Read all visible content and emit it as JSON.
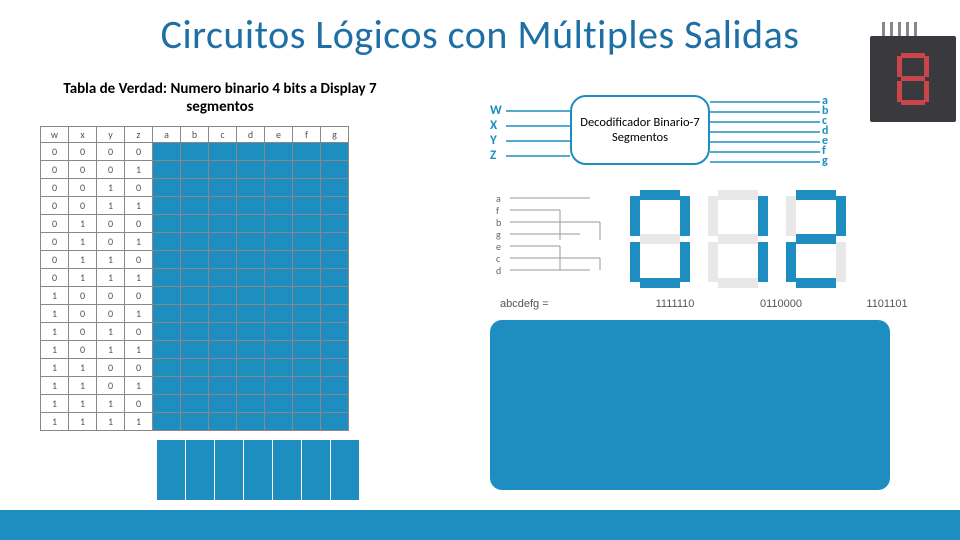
{
  "colors": {
    "title": "#1d6fa5",
    "bar": "#1d8ebf",
    "grid": "#888888",
    "segOff": "#e8e8e8",
    "segOn": "#1d8ebf",
    "photoBg": "#3a393e",
    "photoSeg": "#c8454a"
  },
  "title": "Circuitos Lógicos con Múltiples Salidas",
  "subtitle": "Tabla de Verdad: Numero binario 4 bits a Display 7 segmentos",
  "truth_table": {
    "headers": [
      "w",
      "x",
      "y",
      "z",
      "a",
      "b",
      "c",
      "d",
      "e",
      "f",
      "g"
    ],
    "input_cols": 4,
    "rows": [
      [
        0,
        0,
        0,
        0
      ],
      [
        0,
        0,
        0,
        1
      ],
      [
        0,
        0,
        1,
        0
      ],
      [
        0,
        0,
        1,
        1
      ],
      [
        0,
        1,
        0,
        0
      ],
      [
        0,
        1,
        0,
        1
      ],
      [
        0,
        1,
        1,
        0
      ],
      [
        0,
        1,
        1,
        1
      ],
      [
        1,
        0,
        0,
        0
      ],
      [
        1,
        0,
        0,
        1
      ],
      [
        1,
        0,
        1,
        0
      ],
      [
        1,
        0,
        1,
        1
      ],
      [
        1,
        1,
        0,
        0
      ],
      [
        1,
        1,
        0,
        1
      ],
      [
        1,
        1,
        1,
        0
      ],
      [
        1,
        1,
        1,
        1
      ]
    ]
  },
  "decoder": {
    "label": "Decodificador Binario-7 Segmentos",
    "inputs": [
      "W",
      "X",
      "Y",
      "Z"
    ],
    "outputs": [
      "a",
      "b",
      "c",
      "d",
      "e",
      "f",
      "g"
    ]
  },
  "segment_diagram_labels": [
    "a",
    "f",
    "b",
    "g",
    "e",
    "c",
    "d"
  ],
  "digits": [
    {
      "segments": {
        "a": 1,
        "b": 1,
        "c": 1,
        "d": 1,
        "e": 1,
        "f": 1,
        "g": 0
      },
      "code": "1111110"
    },
    {
      "segments": {
        "a": 0,
        "b": 1,
        "c": 1,
        "d": 0,
        "e": 0,
        "f": 0,
        "g": 0
      },
      "code": "0110000"
    },
    {
      "segments": {
        "a": 1,
        "b": 1,
        "c": 0,
        "d": 1,
        "e": 1,
        "f": 0,
        "g": 1
      },
      "code": "1101101"
    }
  ],
  "codes_label": "abcdefg ="
}
